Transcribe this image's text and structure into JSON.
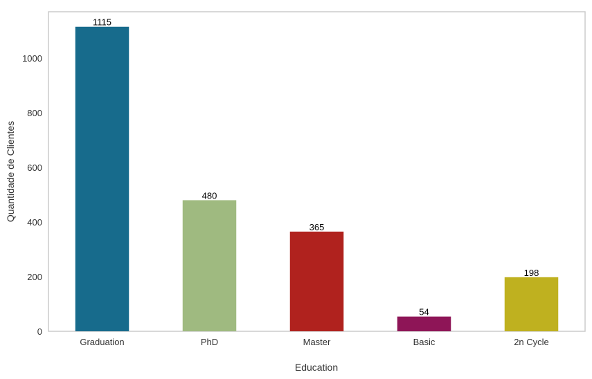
{
  "chart_data": {
    "type": "bar",
    "categories": [
      "Graduation",
      "PhD",
      "Master",
      "Basic",
      "2n Cycle"
    ],
    "values": [
      1115,
      480,
      365,
      54,
      198
    ],
    "colors": [
      "#176b8c",
      "#9fba80",
      "#b0221e",
      "#8e1557",
      "#bfb11f"
    ],
    "title": "",
    "xlabel": "Education",
    "ylabel": "Quantidade de Clientes",
    "ylim": [
      0,
      1170
    ],
    "yticks": [
      0,
      200,
      400,
      600,
      800,
      1000
    ],
    "grid": false,
    "legend": "none"
  }
}
